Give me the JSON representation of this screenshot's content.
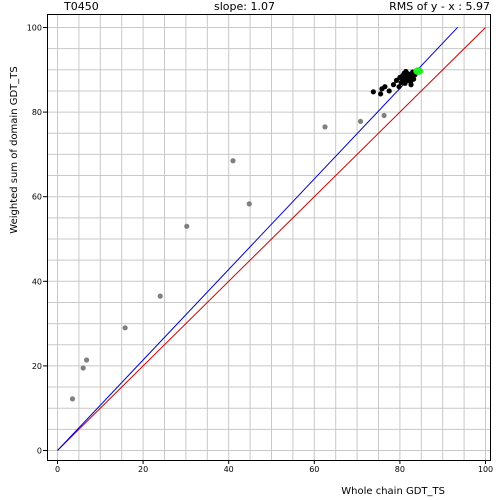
{
  "header": {
    "target_id": "T0450",
    "slope_text": "slope: 1.07",
    "rms_text": "RMS of  y - x : 5.97"
  },
  "chart_data": {
    "type": "scatter",
    "title": "",
    "xlabel": "Whole chain GDT_TS",
    "ylabel": "Weighted sum of domain GDT_TS",
    "xlim": [
      0,
      100
    ],
    "ylim": [
      0,
      100
    ],
    "xticks": [
      0,
      20,
      40,
      60,
      80,
      100
    ],
    "yticks": [
      0,
      20,
      40,
      60,
      80,
      100
    ],
    "grid": true,
    "colors": {
      "gray_points": "#808080",
      "black_points": "#000000",
      "highlight_point": "#22ee22",
      "fit_line": "#0000cc",
      "diagonal_line": "#cc0000",
      "grid": "#c8c8c8"
    },
    "fit_line": {
      "slope": 1.07,
      "x_range": [
        0,
        93.5
      ]
    },
    "diagonal_line": {
      "slope": 1,
      "x_range": [
        0,
        100
      ]
    },
    "series": [
      {
        "points": [
          [
            3.5,
            12.2
          ],
          [
            6.0,
            19.5
          ],
          [
            6.8,
            21.4
          ],
          [
            15.8,
            29.0
          ],
          [
            24.0,
            36.5
          ],
          [
            30.2,
            53.0
          ],
          [
            41.0,
            68.5
          ],
          [
            44.8,
            58.3
          ],
          [
            62.5,
            76.5
          ],
          [
            70.8,
            77.8
          ],
          [
            76.3,
            79.2
          ]
        ]
      },
      {
        "points": [
          [
            73.8,
            84.8
          ],
          [
            75.5,
            84.3
          ],
          [
            75.8,
            85.5
          ],
          [
            76.5,
            86.0
          ],
          [
            77.5,
            85.0
          ],
          [
            78.5,
            86.5
          ],
          [
            79.2,
            87.5
          ],
          [
            79.8,
            86.0
          ],
          [
            80.0,
            88.2
          ],
          [
            80.3,
            87.0
          ],
          [
            80.6,
            88.6
          ],
          [
            80.8,
            87.8
          ],
          [
            81.0,
            89.2
          ],
          [
            81.2,
            86.8
          ],
          [
            81.5,
            88.3
          ],
          [
            81.7,
            87.5
          ],
          [
            82.0,
            89.0
          ],
          [
            82.2,
            88.0
          ],
          [
            82.5,
            87.2
          ],
          [
            82.8,
            88.6
          ],
          [
            83.0,
            89.5
          ],
          [
            83.2,
            87.8
          ],
          [
            83.5,
            88.8
          ],
          [
            82.6,
            86.5
          ],
          [
            81.4,
            89.6
          ]
        ]
      },
      {
        "points": [
          [
            84.3,
            89.7
          ]
        ]
      }
    ]
  }
}
